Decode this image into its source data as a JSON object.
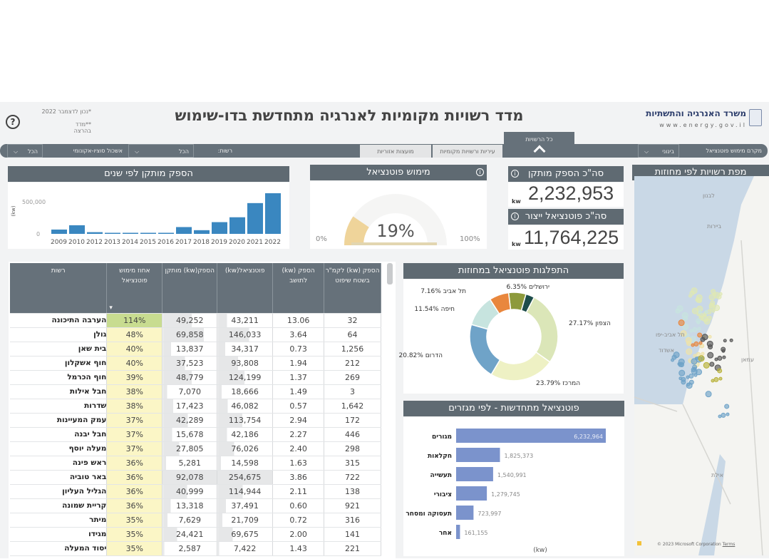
{
  "header": {
    "title": "מדד רשויות מקומיות לאנרגיה מתחדשת בדו-שימוש",
    "ministry": "משרד האנרגיה והתשתיות",
    "website": "www.energy.gov.il",
    "note1": "*נכון לדצמבר 2022",
    "note2": "**מדד בהרצה",
    "help_icon": "?"
  },
  "filters": {
    "realization_range_label": "מקרם מימוש פוטנציאל",
    "realization_range_value": "בינוני",
    "tabs": [
      "כל הרשויות",
      "עיריות ורשויות מקומיות",
      "מועצות אזוריות"
    ],
    "active_tab": "כל הרשויות",
    "authority_label": "רשות:",
    "authority_value": "הכל",
    "socio_label": "אשכול סוציו-אקונומי",
    "socio_value": "הכל"
  },
  "kpis": {
    "installed_title": "סה\"כ הספק מותקן",
    "installed_value": "2,232,953",
    "potential_title": "סה\"כ פוטנציאל ייצור",
    "potential_value": "11,764,225",
    "unit": "kw"
  },
  "gauge": {
    "title": "מימוש פוטנציאל",
    "value_label": "19%",
    "value": 19,
    "min_label": "0%",
    "max_label": "100%"
  },
  "chart_data": [
    {
      "type": "bar",
      "title": "הספק מותקן לפי שנים",
      "ylabel": "(kw)",
      "yticks": [
        "0",
        "500,000"
      ],
      "ylim": [
        0,
        780000
      ],
      "categories": [
        "2009",
        "2010",
        "2012",
        "2013",
        "2014",
        "2015",
        "2016",
        "2017",
        "2018",
        "2019",
        "2020",
        "2021",
        "2022"
      ],
      "values": [
        76000,
        152000,
        30000,
        15000,
        3000,
        3000,
        3000,
        120000,
        65000,
        207000,
        293000,
        543000,
        717000
      ],
      "color": "#3a87c0"
    },
    {
      "type": "pie",
      "title": "התפלגות פוטנציאל במחוזות",
      "slices": [
        {
          "name": "ירושלים",
          "value": 6.35,
          "label": "6.35%",
          "color": "#8d9a3c"
        },
        {
          "name": "",
          "value": 3.17,
          "label": "",
          "color": "#1d4d4b"
        },
        {
          "name": "הצפון",
          "value": 27.17,
          "label": "27.17%",
          "color": "#dbe6b8"
        },
        {
          "name": "המרכז",
          "value": 23.79,
          "label": "23.79%",
          "color": "#eef1c4"
        },
        {
          "name": "הדרום",
          "value": 20.82,
          "label": "20.82%",
          "color": "#6fa3c8"
        },
        {
          "name": "חיפה",
          "value": 11.54,
          "label": "11.54%",
          "color": "#c7e4df"
        },
        {
          "name": "תל אביב",
          "value": 7.16,
          "label": "7.16%",
          "color": "#e9873d"
        }
      ]
    },
    {
      "type": "bar",
      "orientation": "horizontal",
      "title": "פוטנציאל מתחדשות - לפי מגזרים",
      "xlabel": "(kw)",
      "categories": [
        "מגורים",
        "חקלאות",
        "תעשייה",
        "ציבורי",
        "תעסוקה ומסחר",
        "אחר"
      ],
      "values": [
        6232964,
        1825373,
        1540991,
        1279745,
        723997,
        161155
      ],
      "labels": [
        "6,232,964",
        "1,825,373",
        "1,540,991",
        "1,279,745",
        "723,997",
        "161,155"
      ],
      "color": "#7b93cc"
    }
  ],
  "table": {
    "columns": [
      "רשות",
      "אחוז מימוש פוטנציאל",
      "הספק(kw) מותקן",
      "פוטנציאל(kw)",
      "הספק (kw) לתושב",
      "הספק (kw) לקמ\"ר בשטח שיפוט"
    ],
    "rows": [
      [
        "הערבה התיכונה",
        "114%",
        "49,252",
        "43,211",
        "13.06",
        "32"
      ],
      [
        "גולן",
        "48%",
        "69,858",
        "146,033",
        "3.64",
        "64"
      ],
      [
        "בית שאן",
        "40%",
        "13,837",
        "34,317",
        "0.73",
        "1,256"
      ],
      [
        "חוף אשקלון",
        "40%",
        "37,523",
        "93,808",
        "1.94",
        "212"
      ],
      [
        "חוף הכרמל",
        "39%",
        "48,779",
        "124,199",
        "1.37",
        "269"
      ],
      [
        "חבל אילות",
        "38%",
        "7,070",
        "18,666",
        "1.49",
        "3"
      ],
      [
        "שדרות",
        "38%",
        "17,423",
        "46,082",
        "0.57",
        "1,642"
      ],
      [
        "עמק המעיינות",
        "37%",
        "42,289",
        "113,754",
        "2.94",
        "172"
      ],
      [
        "חבל יבנה",
        "37%",
        "15,678",
        "42,186",
        "2.27",
        "446"
      ],
      [
        "מעלה יוסף",
        "37%",
        "27,805",
        "76,026",
        "2.40",
        "298"
      ],
      [
        "ראש פינה",
        "36%",
        "5,281",
        "14,598",
        "1.63",
        "315"
      ],
      [
        "באר טוביה",
        "36%",
        "92,078",
        "254,675",
        "3.86",
        "722"
      ],
      [
        "הגליל העליון",
        "36%",
        "40,999",
        "114,944",
        "2.11",
        "138"
      ],
      [
        "קריית שמונה",
        "36%",
        "13,318",
        "37,491",
        "0.60",
        "921"
      ],
      [
        "מיתר",
        "35%",
        "7,629",
        "21,709",
        "0.72",
        "316"
      ],
      [
        "מגידו",
        "35%",
        "24,421",
        "69,675",
        "2.00",
        "141"
      ],
      [
        "יסוד המעלה",
        "35%",
        "2,587",
        "7,422",
        "1.43",
        "221"
      ]
    ]
  },
  "map": {
    "title": "מפת רשויות לפי מחוזות",
    "places": [
      "לבנון",
      "ביירות",
      "תל אביב-יפו",
      "אשדוד",
      "עמאן",
      "אילת"
    ],
    "copyright": "© 2023 Microsoft Corporation",
    "terms": "Terms"
  }
}
